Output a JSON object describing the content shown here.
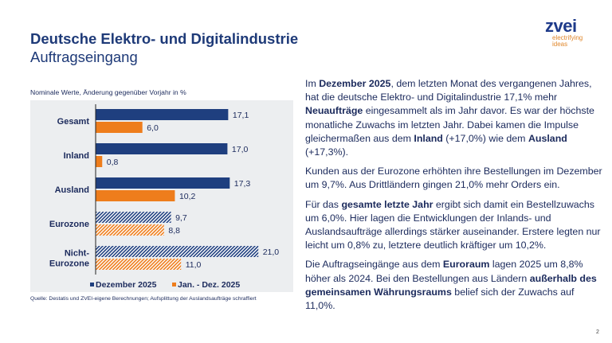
{
  "header": {
    "title": "Deutsche Elektro- und Digitalindustrie",
    "subtitle": "Auftragseingang"
  },
  "logo": {
    "wordmark": "zvei",
    "tagline_1": "electrifying",
    "tagline_2": "ideas"
  },
  "chart_note": "Nominale Werte, Änderung gegenüber Vorjahr in %",
  "chart_data": {
    "type": "bar",
    "orientation": "horizontal",
    "title": "",
    "categories": [
      "Gesamt",
      "Inland",
      "Ausland",
      "Eurozone",
      "Nicht-Eurozone"
    ],
    "category_lines": [
      [
        "Gesamt"
      ],
      [
        "Inland"
      ],
      [
        "Ausland"
      ],
      [
        "Eurozone"
      ],
      [
        "Nicht-",
        "Eurozone"
      ]
    ],
    "hatched_categories": [
      "Eurozone",
      "Nicht-Eurozone"
    ],
    "series": [
      {
        "name": "Dezember 2025",
        "color": "#1f3f7f",
        "values": [
          17.1,
          17.0,
          17.3,
          9.7,
          21.0
        ],
        "labels": [
          "17,1",
          "17,0",
          "17,3",
          "9,7",
          "21,0"
        ]
      },
      {
        "name": "Jan. - Dez. 2025",
        "color": "#ee7d1c",
        "values": [
          6.0,
          0.8,
          10.2,
          8.8,
          11.0
        ],
        "labels": [
          "6,0",
          "0,8",
          "10,2",
          "8,8",
          "11,0"
        ]
      }
    ],
    "xlim": [
      0,
      21
    ],
    "grid": false,
    "legend": "bottom"
  },
  "source": "Quelle: Destatis und ZVEI-eigene Berechnungen; Aufsplittung der Auslandsaufträge schraffiert",
  "body": {
    "paragraphs": [
      [
        {
          "t": "Im "
        },
        {
          "t": "Dezember 2025",
          "b": true
        },
        {
          "t": ", dem letzten Monat des vergangenen Jahres, hat die deutsche Elektro- und Digitalindustrie 17,1% mehr "
        },
        {
          "t": "Neuaufträge",
          "b": true
        },
        {
          "t": " eingesammelt als im Jahr davor. Es war der höchste monatliche Zuwachs im letzten Jahr. Dabei kamen die Impulse gleichermaßen aus dem "
        },
        {
          "t": "Inland",
          "b": true
        },
        {
          "t": " (+17,0%) wie dem "
        },
        {
          "t": "Ausland",
          "b": true
        },
        {
          "t": " (+17,3%)."
        }
      ],
      [
        {
          "t": "Kunden aus der Eurozone erhöhten ihre Bestellungen im Dezember um 9,7%. Aus Drittländern gingen 21,0% mehr Orders ein."
        }
      ],
      [
        {
          "t": "Für das "
        },
        {
          "t": "gesamte letzte Jahr",
          "b": true
        },
        {
          "t": " ergibt sich damit ein Bestellzuwachs um 6,0%. Hier lagen die Entwicklungen der Inlands- und Auslandsaufträge allerdings stärker auseinander. Erstere legten nur leicht um 0,8% zu, letztere deutlich kräftiger um 10,2%."
        }
      ],
      [
        {
          "t": "Die Auftragseingänge aus dem "
        },
        {
          "t": "Euroraum",
          "b": true
        },
        {
          "t": " lagen 2025 um 8,8% höher als 2024. Bei den Bestellungen aus Ländern "
        },
        {
          "t": "außerhalb des gemeinsamen Währungsraums",
          "b": true
        },
        {
          "t": " belief sich der Zuwachs auf 11,0%."
        }
      ]
    ]
  },
  "page_number": "2"
}
